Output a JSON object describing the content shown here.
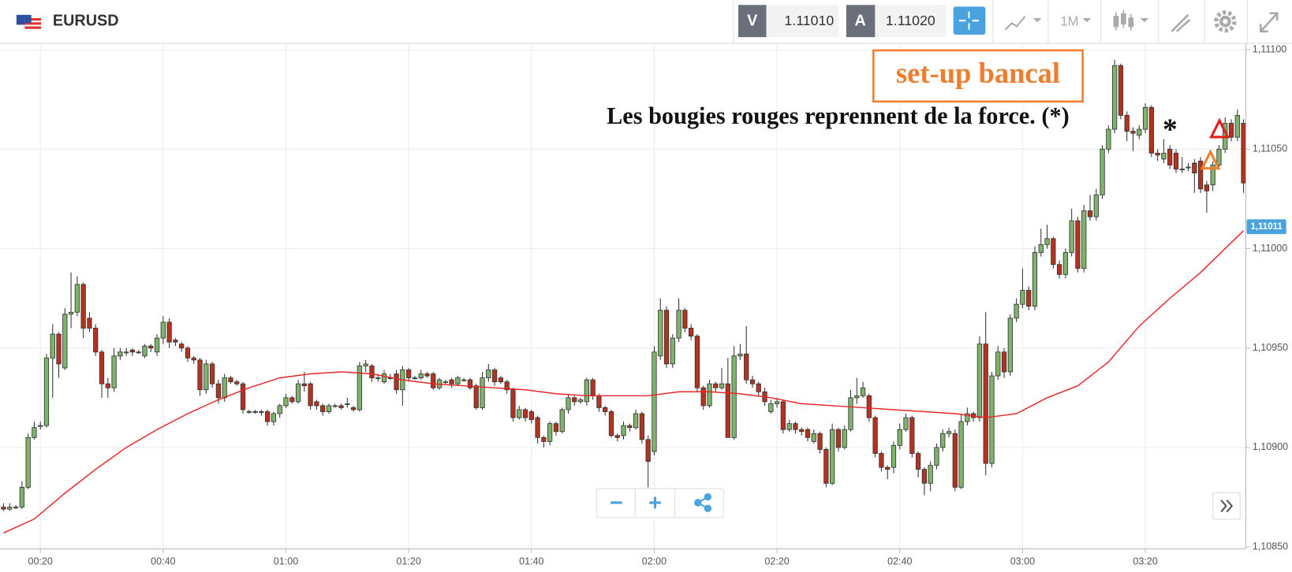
{
  "header": {
    "symbol": "EURUSD",
    "sell_label": "V",
    "sell_price": "1.11010",
    "buy_label": "A",
    "buy_price": "1.11020",
    "timeframe": "1M"
  },
  "chart_data": {
    "type": "candlestick",
    "annotations": [
      "set-up bancal",
      "Les bougies rouges reprennent de la force. (*)",
      "*"
    ],
    "categories": [
      null,
      null,
      null,
      null,
      null,
      null,
      "00:20",
      null,
      null,
      null,
      null,
      null,
      null,
      null,
      null,
      null,
      null,
      null,
      null,
      null,
      null,
      null,
      null,
      null,
      null,
      null,
      "00:40",
      null,
      null,
      null,
      null,
      null,
      null,
      null,
      null,
      null,
      null,
      null,
      null,
      null,
      null,
      null,
      null,
      null,
      null,
      null,
      "01:00",
      null,
      null,
      null,
      null,
      null,
      null,
      null,
      null,
      null,
      null,
      null,
      null,
      null,
      null,
      null,
      null,
      null,
      null,
      null,
      "01:20",
      null,
      null,
      null,
      null,
      null,
      null,
      null,
      null,
      null,
      null,
      null,
      null,
      null,
      null,
      null,
      null,
      null,
      null,
      null,
      "01:40",
      null,
      null,
      null,
      null,
      null,
      null,
      null,
      null,
      null,
      null,
      null,
      null,
      null,
      null,
      null,
      null,
      null,
      null,
      null,
      "02:00",
      null,
      null,
      null,
      null,
      null,
      null,
      null,
      null,
      null,
      null,
      null,
      null,
      null,
      null,
      null,
      null,
      null,
      null,
      null,
      "02:20",
      null,
      null,
      null,
      null,
      null,
      null,
      null,
      null,
      null,
      null,
      null,
      null,
      null,
      null,
      null,
      null,
      null,
      null,
      null,
      "02:40",
      null,
      null,
      null,
      null,
      null,
      null,
      null,
      null,
      null,
      null,
      null,
      null,
      null,
      null,
      null,
      null,
      null,
      null,
      null,
      "03:00",
      null,
      null,
      null,
      null,
      null,
      null,
      null,
      null,
      null,
      null,
      null,
      null,
      null,
      null,
      null,
      null,
      null,
      null,
      null,
      "03:20",
      null,
      null,
      null,
      null,
      null,
      null,
      null,
      null,
      null,
      null,
      null,
      null,
      null,
      null,
      null,
      null
    ],
    "open": [
      1.1087,
      1.10869,
      1.1087,
      1.1087,
      1.1088,
      1.10905,
      1.10911,
      1.10911,
      1.10945,
      1.10957,
      1.1094,
      1.10967,
      1.10968,
      1.10982,
      1.10965,
      1.1096,
      1.10948,
      1.10932,
      1.1093,
      1.10946,
      1.10948,
      1.10949,
      1.10948,
      1.10946,
      1.10951,
      1.10948,
      1.10955,
      1.10963,
      1.10954,
      1.10952,
      1.1095,
      1.10945,
      1.10944,
      1.10929,
      1.10942,
      1.10932,
      1.10925,
      1.10935,
      1.10933,
      1.10932,
      1.10918,
      1.10918,
      1.10918,
      1.10918,
      1.10913,
      1.10917,
      1.10921,
      1.10925,
      1.10923,
      1.10932,
      1.10932,
      1.10923,
      1.10921,
      1.10918,
      1.10921,
      1.10921,
      1.10922,
      1.1092,
      1.10919,
      1.10941,
      1.10941,
      1.10935,
      1.10933,
      1.10935,
      1.10937,
      1.10929,
      1.10939,
      1.10935,
      1.10935,
      1.10937,
      1.10937,
      1.1093,
      1.10933,
      1.10934,
      1.10932,
      1.10934,
      1.10934,
      1.10931,
      1.1092,
      1.10935,
      1.10939,
      1.10935,
      1.10933,
      1.10929,
      1.10915,
      1.10919,
      1.10918,
      1.10915,
      1.10905,
      1.10903,
      1.10912,
      1.10908,
      1.10919,
      1.10925,
      1.10923,
      1.10923,
      1.10934,
      1.10926,
      1.1092,
      1.10918,
      1.10906,
      1.10906,
      1.10911,
      1.1091,
      1.10917,
      1.10904,
      1.10898,
      1.10946,
      1.10969,
      1.10942,
      1.10955,
      1.10969,
      1.1096,
      1.10956,
      1.1093,
      1.10921,
      1.10932,
      1.1093,
      1.10932,
      1.10905,
      1.10946,
      1.10947,
      1.10934,
      1.10932,
      1.10928,
      1.10918,
      1.10922,
      1.10923,
      1.10909,
      1.10912,
      1.10909,
      1.10909,
      1.10903,
      1.10907,
      1.10899,
      1.10882,
      1.10909,
      1.109,
      1.10909,
      1.10925,
      1.10926,
      1.10926,
      1.10915,
      1.10897,
      1.1089,
      1.1089,
      1.10901,
      1.10909,
      1.10915,
      1.10897,
      1.10889,
      1.10882,
      1.10891,
      1.109,
      1.10907,
      1.10907,
      1.1088,
      1.10913,
      1.10917,
      1.10915,
      1.10952,
      1.10892,
      1.10936,
      1.10948,
      1.10938,
      1.10965,
      1.10972,
      1.10979,
      1.10971,
      1.10998,
      1.11002,
      1.11005,
      1.10992,
      1.10987,
      1.10998,
      1.11014,
      1.1099,
      1.11019,
      1.11016,
      1.11027,
      1.1105,
      1.1106,
      1.11092,
      1.11067,
      1.11059,
      1.11057,
      1.1106,
      1.11071,
      1.11048,
      1.11045,
      1.1105,
      1.11048,
      1.1104,
      1.11041,
      1.11043,
      1.11044,
      1.11032,
      1.11032,
      1.11042,
      1.1105,
      1.11063,
      1.11056,
      1.11063
    ],
    "high": [
      1.10872,
      1.10872,
      1.10871,
      1.10883,
      1.10907,
      1.10913,
      1.10913,
      1.10947,
      1.10962,
      1.10958,
      1.1097,
      1.10988,
      1.10986,
      1.10983,
      1.10968,
      1.10962,
      1.10949,
      1.10935,
      1.1095,
      1.1095,
      1.1095,
      1.1095,
      1.10949,
      1.10952,
      1.10952,
      1.10957,
      1.10966,
      1.10965,
      1.10955,
      1.10953,
      1.10951,
      1.10946,
      1.10945,
      1.10944,
      1.10943,
      1.10934,
      1.10937,
      1.10936,
      1.10934,
      1.10933,
      1.10919,
      1.10919,
      1.10919,
      1.10919,
      1.10918,
      1.10922,
      1.10927,
      1.10926,
      1.10934,
      1.10938,
      1.10933,
      1.10924,
      1.10922,
      1.10922,
      1.10922,
      1.10922,
      1.10925,
      1.10921,
      1.10943,
      1.10944,
      1.10942,
      1.10937,
      1.10939,
      1.10937,
      1.10939,
      1.10941,
      1.1094,
      1.10936,
      1.10939,
      1.10938,
      1.10938,
      1.10935,
      1.10934,
      1.10935,
      1.10936,
      1.10935,
      1.10935,
      1.10932,
      1.10938,
      1.10942,
      1.1094,
      1.10936,
      1.10934,
      1.1093,
      1.10921,
      1.1092,
      1.10919,
      1.10916,
      1.10906,
      1.10913,
      1.10913,
      1.1092,
      1.10927,
      1.10926,
      1.10925,
      1.10935,
      1.10935,
      1.10927,
      1.10921,
      1.10919,
      1.10907,
      1.10913,
      1.10912,
      1.10919,
      1.10918,
      1.10906,
      1.10951,
      1.10975,
      1.10971,
      1.10957,
      1.10975,
      1.1097,
      1.10962,
      1.10957,
      1.10931,
      1.10934,
      1.10933,
      1.1094,
      1.10945,
      1.10951,
      1.10952,
      1.10961,
      1.10936,
      1.10933,
      1.1093,
      1.10924,
      1.10925,
      1.10924,
      1.10914,
      1.10913,
      1.1091,
      1.1091,
      1.10909,
      1.10908,
      1.109,
      1.10912,
      1.1091,
      1.10911,
      1.10929,
      1.10935,
      1.10933,
      1.10927,
      1.10916,
      1.10898,
      1.10891,
      1.10903,
      1.10912,
      1.10917,
      1.10916,
      1.10898,
      1.1089,
      1.10893,
      1.10902,
      1.10909,
      1.1091,
      1.10909,
      1.10917,
      1.1092,
      1.10918,
      1.10956,
      1.10968,
      1.10938,
      1.10951,
      1.1095,
      1.10967,
      1.10975,
      1.1099,
      1.10981,
      1.11001,
      1.1101,
      1.11012,
      1.11006,
      1.10994,
      1.11,
      1.1102,
      1.11016,
      1.11022,
      1.11027,
      1.1103,
      1.11052,
      1.11062,
      1.11095,
      1.11093,
      1.11069,
      1.11061,
      1.11062,
      1.11073,
      1.11072,
      1.1105,
      1.11055,
      1.11052,
      1.1105,
      1.11046,
      1.11043,
      1.11045,
      1.11046,
      1.11034,
      1.11044,
      1.11052,
      1.11066,
      1.11065,
      1.1107,
      1.11065
    ],
    "low": [
      1.10868,
      1.10868,
      1.10869,
      1.10869,
      1.10879,
      1.10904,
      1.10909,
      1.1091,
      1.10925,
      1.10935,
      1.10939,
      1.1096,
      1.10966,
      1.10955,
      1.10958,
      1.10946,
      1.10925,
      1.10925,
      1.10928,
      1.10944,
      1.10946,
      1.10946,
      1.10947,
      1.10945,
      1.10948,
      1.10946,
      1.10952,
      1.1095,
      1.10951,
      1.10948,
      1.10943,
      1.10942,
      1.10926,
      1.10927,
      1.1093,
      1.10922,
      1.10923,
      1.10932,
      1.10931,
      1.10917,
      1.10917,
      1.10917,
      1.10916,
      1.10911,
      1.10911,
      1.10915,
      1.1092,
      1.10922,
      1.10922,
      1.10928,
      1.10919,
      1.10919,
      1.10916,
      1.10917,
      1.1092,
      1.10919,
      1.1092,
      1.10918,
      1.10918,
      1.10938,
      1.10933,
      1.10933,
      1.10932,
      1.10934,
      1.10927,
      1.10921,
      1.10933,
      1.10934,
      1.10934,
      1.10935,
      1.10929,
      1.10929,
      1.10932,
      1.1093,
      1.10931,
      1.10933,
      1.10929,
      1.10919,
      1.10919,
      1.10933,
      1.10931,
      1.10932,
      1.10927,
      1.10913,
      1.10914,
      1.10913,
      1.10912,
      1.10902,
      1.109,
      1.10901,
      1.10906,
      1.10907,
      1.10917,
      1.10921,
      1.10922,
      1.10921,
      1.10924,
      1.10918,
      1.10916,
      1.10905,
      1.10903,
      1.10904,
      1.10908,
      1.10909,
      1.10902,
      1.1088,
      1.10896,
      1.10944,
      1.1094,
      1.1094,
      1.10953,
      1.10958,
      1.10954,
      1.10928,
      1.10919,
      1.1092,
      1.10928,
      1.10929,
      1.10905,
      1.10904,
      1.10944,
      1.10932,
      1.1093,
      1.10926,
      1.10921,
      1.10917,
      1.1092,
      1.10907,
      1.10908,
      1.10907,
      1.10906,
      1.10903,
      1.10902,
      1.10897,
      1.1088,
      1.10881,
      1.10898,
      1.10899,
      1.10908,
      1.10922,
      1.10925,
      1.10913,
      1.10895,
      1.10888,
      1.10884,
      1.10887,
      1.10899,
      1.10908,
      1.10895,
      1.10885,
      1.10876,
      1.10878,
      1.10889,
      1.10898,
      1.10905,
      1.10878,
      1.10879,
      1.10911,
      1.10913,
      1.10913,
      1.10886,
      1.1089,
      1.10934,
      1.10935,
      1.10936,
      1.10963,
      1.1097,
      1.10969,
      1.10969,
      1.10996,
      1.11,
      1.1099,
      1.10985,
      1.10985,
      1.10996,
      1.10988,
      1.10988,
      1.11014,
      1.11014,
      1.11025,
      1.11048,
      1.11058,
      1.11065,
      1.11054,
      1.11049,
      1.11055,
      1.11058,
      1.11046,
      1.11044,
      1.11043,
      1.1104,
      1.11038,
      1.11038,
      1.11039,
      1.11028,
      1.11028,
      1.11018,
      1.11029,
      1.1104,
      1.11048,
      1.11054,
      1.11054,
      1.11028
    ],
    "close": [
      1.10869,
      1.1087,
      1.1087,
      1.1088,
      1.10905,
      1.1091,
      1.10911,
      1.10945,
      1.10957,
      1.10942,
      1.10967,
      1.10968,
      1.10982,
      1.1096,
      1.1096,
      1.10948,
      1.10932,
      1.1093,
      1.10946,
      1.10948,
      1.10948,
      1.10948,
      1.10948,
      1.10951,
      1.1095,
      1.10955,
      1.10963,
      1.10953,
      1.10953,
      1.1095,
      1.10945,
      1.10944,
      1.10929,
      1.10942,
      1.10932,
      1.10925,
      1.10935,
      1.10933,
      1.10932,
      1.10919,
      1.10918,
      1.10918,
      1.10918,
      1.10913,
      1.10917,
      1.10921,
      1.10925,
      1.10923,
      1.10932,
      1.10931,
      1.10921,
      1.10921,
      1.10918,
      1.10921,
      1.10921,
      1.1092,
      1.10922,
      1.10919,
      1.10941,
      1.10942,
      1.10935,
      1.10935,
      1.10937,
      1.10935,
      1.10929,
      1.10939,
      1.10935,
      1.10935,
      1.10937,
      1.10936,
      1.1093,
      1.10934,
      1.10933,
      1.10932,
      1.10935,
      1.10934,
      1.1093,
      1.1092,
      1.10935,
      1.10939,
      1.10933,
      1.10933,
      1.10929,
      1.10915,
      1.10919,
      1.10915,
      1.10914,
      1.10905,
      1.10903,
      1.10912,
      1.10908,
      1.10919,
      1.10925,
      1.10923,
      1.10924,
      1.10934,
      1.10926,
      1.1092,
      1.10918,
      1.10906,
      1.10905,
      1.10911,
      1.1091,
      1.10917,
      1.10904,
      1.10893,
      1.10948,
      1.10969,
      1.10942,
      1.10955,
      1.10969,
      1.1096,
      1.10956,
      1.1093,
      1.10921,
      1.10932,
      1.1093,
      1.10932,
      1.10905,
      1.10946,
      1.10947,
      1.10934,
      1.10932,
      1.10928,
      1.10923,
      1.10922,
      1.10923,
      1.10909,
      1.10912,
      1.10909,
      1.10908,
      1.10905,
      1.10907,
      1.10899,
      1.10882,
      1.10909,
      1.109,
      1.10909,
      1.10925,
      1.10926,
      1.1093,
      1.10915,
      1.10897,
      1.1089,
      1.10889,
      1.10901,
      1.10909,
      1.10915,
      1.10897,
      1.10889,
      1.10882,
      1.10891,
      1.109,
      1.10907,
      1.10908,
      1.1088,
      1.10913,
      1.10917,
      1.10915,
      1.10952,
      1.10892,
      1.10936,
      1.10948,
      1.10938,
      1.10965,
      1.10972,
      1.10979,
      1.10971,
      1.10998,
      1.11002,
      1.11005,
      1.10992,
      1.10987,
      1.10998,
      1.11014,
      1.1099,
      1.11019,
      1.11016,
      1.11027,
      1.1105,
      1.1106,
      1.11092,
      1.11067,
      1.11059,
      1.11058,
      1.1106,
      1.11071,
      1.11048,
      1.11047,
      1.11048,
      1.11042,
      1.1104,
      1.1104,
      1.11041,
      1.11038,
      1.1103,
      1.11029,
      1.11042,
      1.1105,
      1.11063,
      1.11056,
      1.11067,
      1.11033
    ],
    "up_color": "#7fb46c",
    "down_color": "#b5321f",
    "moving_average": {
      "color": "#e8262a",
      "x": [
        0,
        5,
        10,
        15,
        20,
        25,
        30,
        35,
        40,
        45,
        50,
        55,
        60,
        65,
        70,
        75,
        80,
        85,
        90,
        95,
        100,
        105,
        110,
        115,
        120,
        125,
        130,
        135,
        140,
        145,
        150,
        155,
        160,
        165,
        170,
        175,
        180,
        185,
        190,
        195,
        200,
        202
      ],
      "values": [
        1.10857,
        1.10864,
        1.10877,
        1.10889,
        1.109,
        1.10909,
        1.10917,
        1.10924,
        1.1093,
        1.10935,
        1.10937,
        1.10938,
        1.10937,
        1.10934,
        1.10932,
        1.10931,
        1.1093,
        1.10929,
        1.10927,
        1.10926,
        1.10926,
        1.10926,
        1.10928,
        1.10928,
        1.10927,
        1.10925,
        1.10922,
        1.10921,
        1.1092,
        1.10919,
        1.10918,
        1.10917,
        1.10915,
        1.10917,
        1.10925,
        1.10931,
        1.10943,
        1.10961,
        1.10975,
        1.10988,
        1.11003,
        1.11009
      ]
    },
    "last_price": {
      "value": 1.11011,
      "label": "1,11011"
    },
    "ylim": [
      1.10849,
      1.11103
    ],
    "yticks": [
      {
        "value": 1.1085,
        "label": "1,10850"
      },
      {
        "value": 1.109,
        "label": "1,10900"
      },
      {
        "value": 1.1095,
        "label": "1,10950"
      },
      {
        "value": 1.11,
        "label": "1,11000"
      },
      {
        "value": 1.1105,
        "label": "1,11050"
      },
      {
        "value": 1.111,
        "label": "1,11100"
      }
    ],
    "grid": true
  }
}
